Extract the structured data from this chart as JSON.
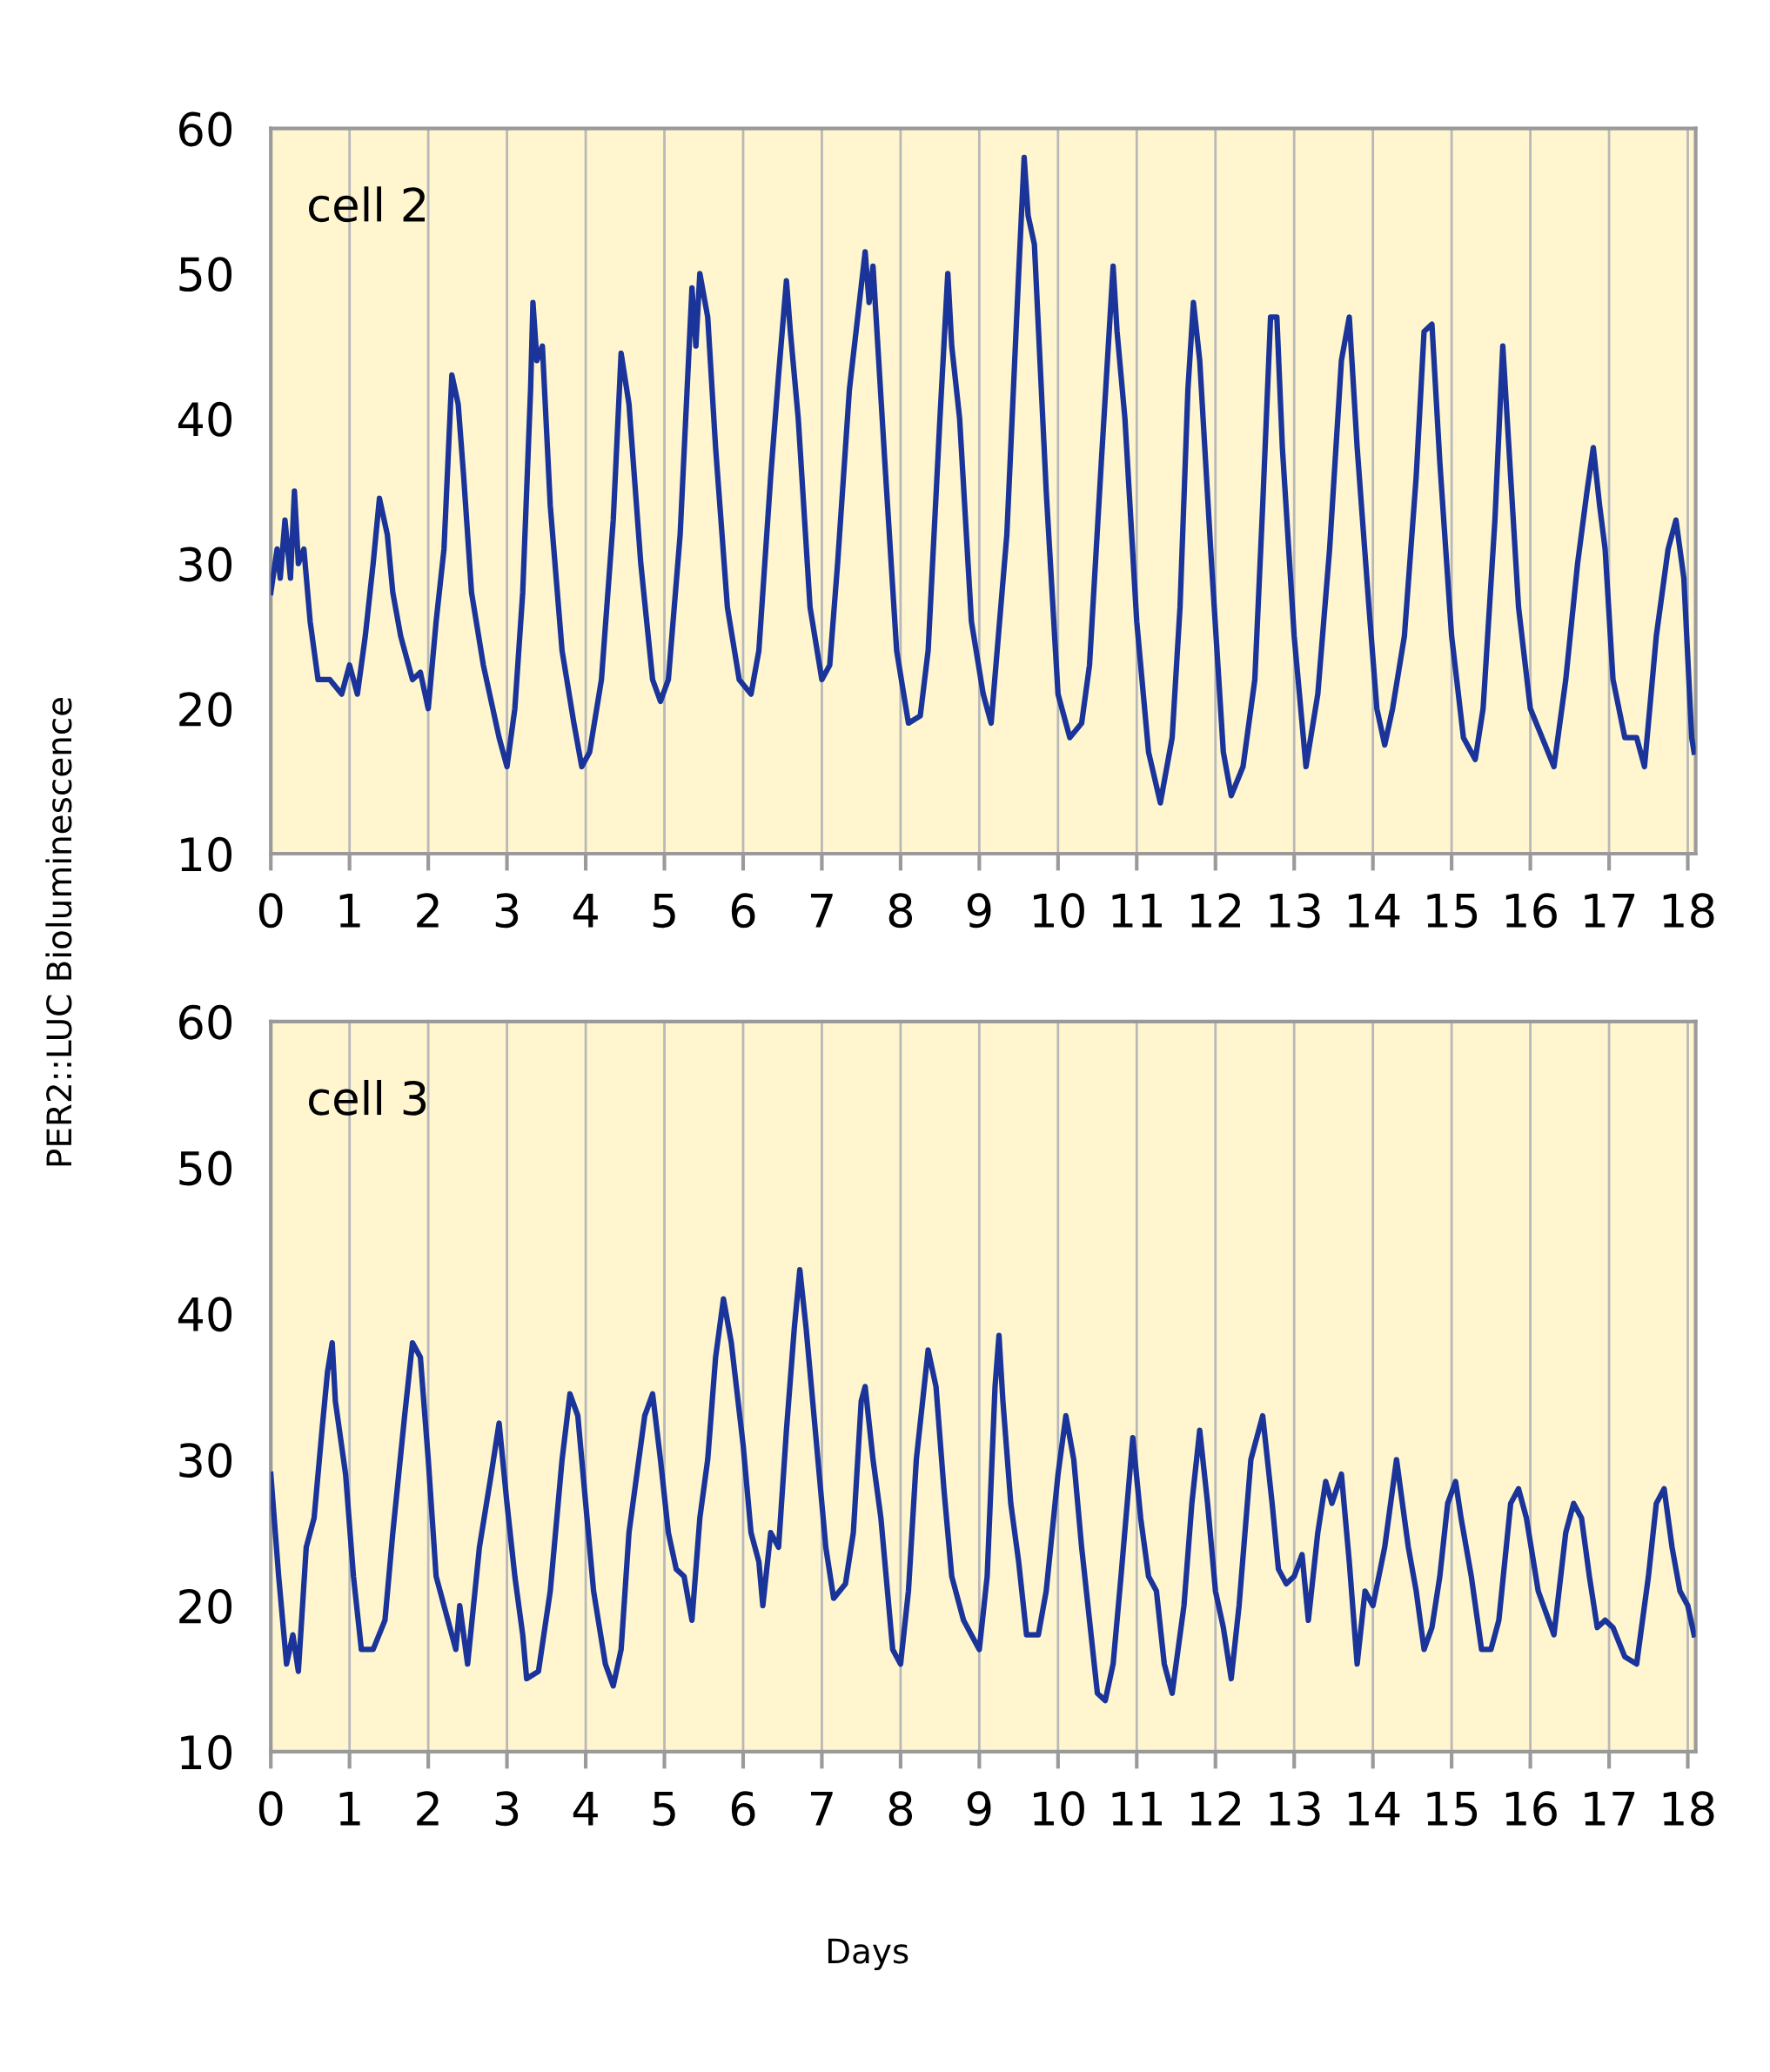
{
  "chart_data": [
    {
      "type": "line",
      "ylabel": "PER2::LUC Bioluminescence",
      "annotations": [
        "cell 2"
      ],
      "xlim": [
        0,
        18.1
      ],
      "ylim": [
        10,
        60
      ],
      "xticks": [
        0,
        1,
        2,
        3,
        4,
        5,
        6,
        7,
        8,
        9,
        10,
        11,
        12,
        13,
        14,
        15,
        16,
        17,
        18
      ],
      "yticks": [
        10,
        20,
        30,
        40,
        50,
        60
      ],
      "grid": "x",
      "legend": false,
      "marker": "none",
      "line_style": "solid",
      "series": [
        {
          "color": "#1a349a",
          "x": [
            0,
            0.08,
            0.12,
            0.18,
            0.25,
            0.3,
            0.35,
            0.42,
            0.5,
            0.6,
            0.75,
            0.9,
            1.0,
            1.1,
            1.2,
            1.3,
            1.38,
            1.48,
            1.55,
            1.65,
            1.8,
            1.9,
            2.0,
            2.1,
            2.2,
            2.3,
            2.38,
            2.45,
            2.55,
            2.7,
            2.9,
            3.0,
            3.1,
            3.2,
            3.3,
            3.33,
            3.38,
            3.45,
            3.55,
            3.7,
            3.85,
            3.95,
            4.05,
            4.2,
            4.35,
            4.45,
            4.55,
            4.7,
            4.85,
            4.95,
            5.05,
            5.2,
            5.35,
            5.4,
            5.45,
            5.55,
            5.65,
            5.8,
            5.95,
            6.1,
            6.2,
            6.35,
            6.45,
            6.55,
            6.6,
            6.7,
            6.85,
            7.0,
            7.1,
            7.2,
            7.35,
            7.55,
            7.6,
            7.65,
            7.8,
            7.95,
            8.1,
            8.25,
            8.35,
            8.5,
            8.6,
            8.65,
            8.75,
            8.9,
            9.05,
            9.15,
            9.35,
            9.5,
            9.57,
            9.62,
            9.7,
            9.85,
            10.0,
            10.15,
            10.3,
            10.4,
            10.55,
            10.7,
            10.75,
            10.85,
            11.0,
            11.15,
            11.3,
            11.45,
            11.55,
            11.65,
            11.72,
            11.8,
            11.95,
            12.1,
            12.2,
            12.35,
            12.5,
            12.6,
            12.7,
            12.78,
            12.85,
            13.0,
            13.15,
            13.3,
            13.45,
            13.6,
            13.7,
            13.8,
            13.95,
            14.05,
            14.15,
            14.25,
            14.4,
            14.55,
            14.65,
            14.75,
            14.85,
            15.0,
            15.15,
            15.3,
            15.4,
            15.55,
            15.65,
            15.75,
            15.85,
            16.0,
            16.15,
            16.3,
            16.45,
            16.6,
            16.72,
            16.8,
            16.88,
            16.95,
            17.05,
            17.2,
            17.35,
            17.45,
            17.6,
            17.75,
            17.85,
            17.95,
            18.05,
            18.08
          ],
          "values": [
            28,
            31,
            29,
            33,
            29,
            35,
            30,
            31,
            26,
            22,
            22,
            21,
            23,
            21,
            25,
            30,
            34.5,
            32,
            28,
            25,
            22,
            22.5,
            20,
            26,
            31,
            43,
            41,
            36,
            28,
            23,
            18,
            16,
            20,
            28,
            42,
            48,
            44,
            45,
            34,
            24,
            19,
            16,
            17,
            22,
            33,
            44.5,
            41,
            30,
            22,
            20.5,
            22,
            32,
            49,
            45,
            50,
            47,
            38,
            27,
            22,
            21,
            24,
            36,
            43,
            49.5,
            46,
            40,
            27,
            22,
            23,
            30,
            42,
            51.5,
            48,
            50.5,
            37,
            24,
            19,
            19.5,
            24,
            40,
            50,
            45,
            40,
            26,
            21,
            19,
            32,
            50,
            58,
            54,
            52,
            35,
            21,
            18,
            19,
            23,
            37,
            50.5,
            46,
            40,
            26,
            17,
            13.5,
            18,
            27,
            42,
            48,
            44,
            30,
            17,
            14,
            16,
            22,
            34,
            47,
            47,
            38,
            25,
            16,
            21,
            31,
            44,
            47,
            38,
            27,
            20,
            17.5,
            20,
            25,
            36,
            46,
            46.5,
            37,
            25,
            18,
            16.5,
            20,
            33,
            45,
            36,
            27,
            20,
            18,
            16,
            22,
            30,
            35,
            38,
            34,
            31,
            22,
            18,
            18,
            16,
            25,
            31,
            33,
            29,
            18,
            17
          ]
        }
      ]
    },
    {
      "type": "line",
      "xlabel": "Days",
      "annotations": [
        "cell 3"
      ],
      "xlim": [
        0,
        18.1
      ],
      "ylim": [
        10,
        60
      ],
      "xticks": [
        0,
        1,
        2,
        3,
        4,
        5,
        6,
        7,
        8,
        9,
        10,
        11,
        12,
        13,
        14,
        15,
        16,
        17,
        18
      ],
      "yticks": [
        10,
        20,
        30,
        40,
        50,
        60
      ],
      "grid": "x",
      "legend": false,
      "marker": "none",
      "line_style": "solid",
      "series": [
        {
          "color": "#1a349a",
          "x": [
            0,
            0.1,
            0.2,
            0.28,
            0.35,
            0.45,
            0.55,
            0.65,
            0.72,
            0.78,
            0.82,
            0.95,
            1.05,
            1.15,
            1.3,
            1.45,
            1.55,
            1.7,
            1.8,
            1.9,
            2.0,
            2.1,
            2.25,
            2.35,
            2.4,
            2.5,
            2.65,
            2.8,
            2.9,
            3.0,
            3.1,
            3.2,
            3.25,
            3.4,
            3.55,
            3.7,
            3.8,
            3.9,
            4.0,
            4.1,
            4.25,
            4.35,
            4.45,
            4.55,
            4.75,
            4.85,
            4.95,
            5.05,
            5.15,
            5.25,
            5.35,
            5.45,
            5.55,
            5.65,
            5.75,
            5.85,
            6.0,
            6.1,
            6.2,
            6.25,
            6.35,
            6.45,
            6.55,
            6.65,
            6.72,
            6.8,
            6.95,
            7.05,
            7.15,
            7.3,
            7.4,
            7.5,
            7.55,
            7.65,
            7.75,
            7.9,
            8.0,
            8.1,
            8.2,
            8.35,
            8.45,
            8.55,
            8.65,
            8.8,
            8.9,
            9.0,
            9.1,
            9.2,
            9.25,
            9.3,
            9.4,
            9.5,
            9.6,
            9.75,
            9.85,
            10.0,
            10.1,
            10.2,
            10.3,
            10.4,
            10.5,
            10.6,
            10.7,
            10.8,
            10.95,
            11.05,
            11.15,
            11.25,
            11.35,
            11.45,
            11.6,
            11.7,
            11.8,
            11.9,
            12.0,
            12.1,
            12.2,
            12.3,
            12.45,
            12.6,
            12.72,
            12.8,
            12.9,
            13.0,
            13.1,
            13.18,
            13.3,
            13.4,
            13.48,
            13.6,
            13.7,
            13.8,
            13.9,
            14.0,
            14.15,
            14.3,
            14.45,
            14.55,
            14.65,
            14.75,
            14.85,
            14.95,
            15.05,
            15.12,
            15.25,
            15.38,
            15.5,
            15.6,
            15.75,
            15.85,
            15.95,
            16.1,
            16.3,
            16.45,
            16.55,
            16.65,
            16.75,
            16.85,
            16.95,
            17.05,
            17.2,
            17.35,
            17.5,
            17.6,
            17.7,
            17.8,
            17.9,
            18.0,
            18.08
          ],
          "values": [
            29,
            22,
            16,
            18,
            15.5,
            24,
            26,
            32,
            36,
            38,
            34,
            29,
            22,
            17,
            17,
            19,
            25,
            33,
            38,
            37,
            30,
            22,
            19,
            17,
            20,
            16,
            24,
            29,
            32.5,
            27,
            22,
            18,
            15,
            15.5,
            21,
            30,
            34.5,
            33,
            27,
            21,
            16,
            14.5,
            17,
            25,
            33,
            34.5,
            30,
            25,
            22.5,
            22,
            19,
            26,
            30,
            37,
            41,
            38,
            31,
            25,
            23,
            20,
            25,
            24,
            32,
            39,
            43,
            39,
            30,
            24,
            20.5,
            21.5,
            25,
            34,
            35,
            30,
            26,
            17,
            16,
            21,
            30,
            37.5,
            35,
            28,
            22,
            19,
            18,
            17,
            22,
            35,
            38.5,
            34,
            27,
            23,
            18,
            18,
            21,
            29,
            33,
            30,
            24,
            19,
            14,
            13.5,
            16,
            22,
            31.5,
            26,
            22,
            21,
            16,
            14,
            20,
            27,
            32,
            27,
            21,
            18.5,
            15,
            20,
            30,
            33,
            27,
            22.5,
            21.5,
            22,
            23.5,
            19,
            25,
            28.5,
            27,
            29,
            23,
            16,
            21,
            20,
            24,
            30,
            24,
            21,
            17,
            18.5,
            22,
            27,
            28.5,
            26,
            22,
            17,
            17,
            19,
            27,
            28,
            26,
            21,
            18,
            25,
            27,
            26,
            22,
            18.5,
            19,
            18.5,
            16.5,
            16,
            22,
            27,
            28,
            24,
            21,
            20,
            18
          ]
        }
      ]
    }
  ]
}
